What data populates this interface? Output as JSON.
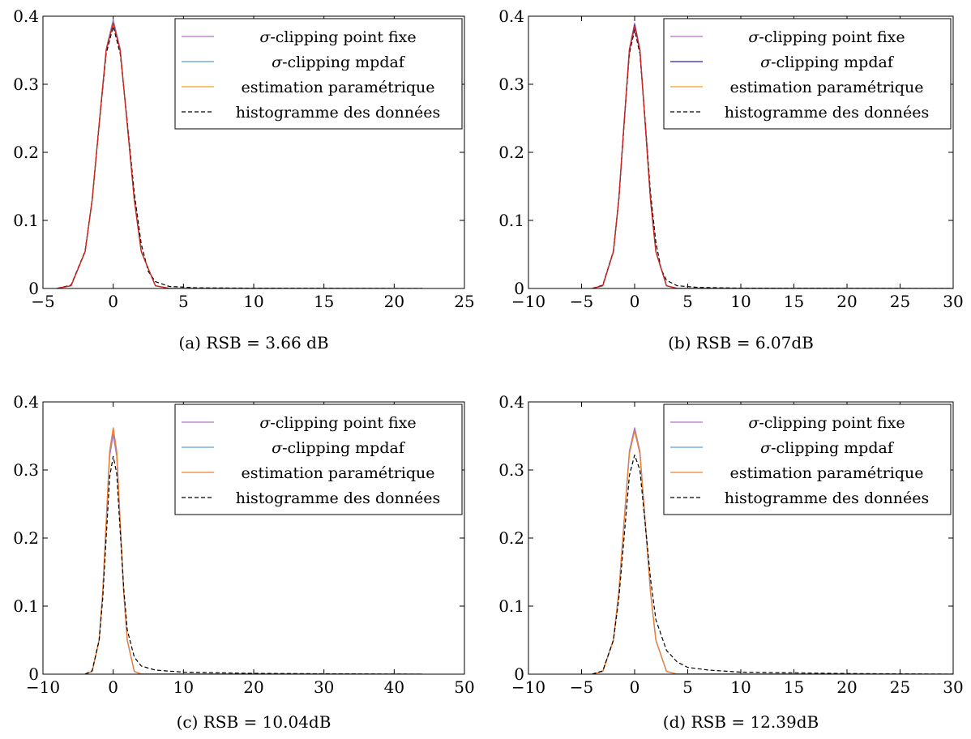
{
  "legend": [
    {
      "pre": "σ",
      "label": "-clipping point fixe",
      "color": "#b072c4",
      "dash": false
    },
    {
      "pre": "σ",
      "label": "-clipping mpdaf",
      "color": "#5aa0d0",
      "dash": false
    },
    {
      "pre": "",
      "label": "estimation paramétrique",
      "color": "#f0a020",
      "dash": false
    },
    {
      "pre": "",
      "label": "histogramme des données",
      "color": "#000000",
      "dash": true
    }
  ],
  "chart_data": [
    {
      "type": "line",
      "caption": "(a) RSB = 3.66 dB",
      "xlim": [
        -5,
        25
      ],
      "ylim": [
        0,
        0.4
      ],
      "xticks": [
        -5,
        0,
        5,
        10,
        15,
        20,
        25
      ],
      "xtick_labels": [
        "−5",
        "0",
        "5",
        "10",
        "15",
        "20",
        "25"
      ],
      "yticks": [
        0,
        0.1,
        0.2,
        0.3,
        0.4
      ],
      "ytick_labels": [
        "0",
        "0.1",
        "0.2",
        "0.3",
        "0.4"
      ],
      "legend_position": "top-right",
      "series": [
        {
          "name": "σ-clipping point fixe",
          "color": "#b072c4",
          "x": [
            -4,
            -3,
            -2,
            -1.5,
            -1,
            -0.5,
            0,
            0.5,
            1,
            1.5,
            2,
            3,
            4,
            22
          ],
          "y": [
            0.0001,
            0.004,
            0.054,
            0.13,
            0.242,
            0.352,
            0.395,
            0.352,
            0.242,
            0.13,
            0.054,
            0.004,
            0.0001,
            0
          ]
        },
        {
          "name": "σ-clipping mpdaf",
          "color": "#5aa0d0",
          "x": [
            -4,
            -3,
            -2,
            -1.5,
            -1,
            -0.5,
            0,
            0.5,
            1,
            1.5,
            2,
            3,
            4,
            22
          ],
          "y": [
            0.0001,
            0.004,
            0.054,
            0.13,
            0.241,
            0.35,
            0.393,
            0.35,
            0.241,
            0.13,
            0.054,
            0.004,
            0.0001,
            0
          ]
        },
        {
          "name": "estimation paramétrique",
          "color": "#f0a020",
          "x": [
            -4,
            -3,
            -2,
            -1.5,
            -1,
            -0.5,
            0,
            0.5,
            1,
            1.5,
            2,
            3,
            4,
            22
          ],
          "y": [
            0.0001,
            0.004,
            0.054,
            0.13,
            0.241,
            0.35,
            0.39,
            0.35,
            0.241,
            0.13,
            0.054,
            0.004,
            0.0001,
            0
          ]
        },
        {
          "name": "histogramme des données",
          "color": "#000000",
          "dash": true,
          "x": [
            -4,
            -3,
            -2,
            -1.5,
            -1,
            -0.5,
            0,
            0.5,
            1,
            1.5,
            2,
            2.5,
            3,
            4,
            6,
            10,
            22
          ],
          "y": [
            0.0001,
            0.005,
            0.055,
            0.13,
            0.24,
            0.345,
            0.385,
            0.345,
            0.245,
            0.14,
            0.065,
            0.025,
            0.01,
            0.003,
            0.001,
            0.0005,
            0
          ]
        },
        {
          "name": "σ-clipping mpdaf (red)",
          "color": "#cc2222",
          "x": [
            -4,
            -3,
            -2,
            -1.5,
            -1,
            -0.5,
            0,
            0.5,
            1,
            1.5,
            2,
            3,
            4
          ],
          "y": [
            0.0001,
            0.004,
            0.054,
            0.13,
            0.241,
            0.35,
            0.39,
            0.35,
            0.241,
            0.13,
            0.054,
            0.004,
            0.0001
          ]
        }
      ]
    },
    {
      "type": "line",
      "caption": "(b) RSB = 6.07dB",
      "xlim": [
        -10,
        30
      ],
      "ylim": [
        0,
        0.4
      ],
      "xticks": [
        -10,
        -5,
        0,
        5,
        10,
        15,
        20,
        25,
        30
      ],
      "xtick_labels": [
        "−10",
        "−5",
        "0",
        "5",
        "10",
        "15",
        "20",
        "25",
        "30"
      ],
      "yticks": [
        0,
        0.1,
        0.2,
        0.3,
        0.4
      ],
      "ytick_labels": [
        "0",
        "0.1",
        "0.2",
        "0.3",
        "0.4"
      ],
      "legend_position": "top-right",
      "series": [
        {
          "name": "σ-clipping point fixe",
          "color": "#b072c4",
          "x": [
            -4,
            -3,
            -2,
            -1.5,
            -1,
            -0.5,
            0,
            0.5,
            1,
            1.5,
            2,
            3,
            4,
            30
          ],
          "y": [
            0.0001,
            0.004,
            0.054,
            0.13,
            0.242,
            0.352,
            0.39,
            0.352,
            0.242,
            0.13,
            0.054,
            0.004,
            0.0001,
            0
          ]
        },
        {
          "name": "σ-clipping mpdaf",
          "color": "#2020c0",
          "x": [
            -4,
            -3,
            -2,
            -1.5,
            -1,
            -0.5,
            0,
            0.5,
            1,
            1.5,
            2,
            3,
            4,
            30
          ],
          "y": [
            0.0001,
            0.004,
            0.054,
            0.13,
            0.241,
            0.35,
            0.387,
            0.35,
            0.241,
            0.13,
            0.054,
            0.004,
            0.0001,
            0
          ]
        },
        {
          "name": "estimation paramétrique",
          "color": "#f0a020",
          "x": [
            -4,
            -3,
            -2,
            -1.5,
            -1,
            -0.5,
            0,
            0.5,
            1,
            1.5,
            2,
            3,
            4,
            30
          ],
          "y": [
            0.0001,
            0.004,
            0.054,
            0.13,
            0.241,
            0.35,
            0.385,
            0.35,
            0.241,
            0.13,
            0.054,
            0.004,
            0.0001,
            0
          ]
        },
        {
          "name": "histogramme des données",
          "color": "#000000",
          "dash": true,
          "x": [
            -4,
            -3,
            -2,
            -1.5,
            -1,
            -0.5,
            0,
            0.5,
            1,
            1.5,
            2,
            2.5,
            3,
            4,
            6,
            10,
            30
          ],
          "y": [
            0.0001,
            0.005,
            0.055,
            0.13,
            0.24,
            0.345,
            0.38,
            0.345,
            0.245,
            0.14,
            0.068,
            0.028,
            0.012,
            0.004,
            0.0015,
            0.0005,
            0
          ]
        },
        {
          "name": "σ-clipping mpdaf (red)",
          "color": "#cc2222",
          "x": [
            -4,
            -3,
            -2,
            -1.5,
            -1,
            -0.5,
            0,
            0.5,
            1,
            1.5,
            2,
            3,
            4
          ],
          "y": [
            0.0001,
            0.004,
            0.054,
            0.13,
            0.241,
            0.35,
            0.385,
            0.35,
            0.241,
            0.13,
            0.054,
            0.004,
            0.0001
          ]
        }
      ]
    },
    {
      "type": "line",
      "caption": "(c) RSB = 10.04dB",
      "xlim": [
        -10,
        50
      ],
      "ylim": [
        0,
        0.4
      ],
      "xticks": [
        -10,
        0,
        10,
        20,
        30,
        40,
        50
      ],
      "xtick_labels": [
        "−10",
        "0",
        "10",
        "20",
        "30",
        "40",
        "50"
      ],
      "yticks": [
        0,
        0.1,
        0.2,
        0.3,
        0.4
      ],
      "ytick_labels": [
        "0",
        "0.1",
        "0.2",
        "0.3",
        "0.4"
      ],
      "legend_position": "top-right",
      "series": [
        {
          "name": "σ-clipping point fixe",
          "color": "#b072c4",
          "x": [
            -4,
            -3,
            -2,
            -1.5,
            -1,
            -0.5,
            0,
            0.5,
            1,
            1.5,
            2,
            3,
            4,
            44
          ],
          "y": [
            0.0001,
            0.004,
            0.05,
            0.118,
            0.22,
            0.32,
            0.352,
            0.32,
            0.22,
            0.118,
            0.05,
            0.004,
            0.0001,
            0
          ]
        },
        {
          "name": "σ-clipping mpdaf",
          "color": "#5aa0d0",
          "x": [
            -4,
            -3,
            -2,
            -1.5,
            -1,
            -0.5,
            0,
            0.5,
            1,
            1.5,
            2,
            3,
            4,
            44
          ],
          "y": [
            0.0001,
            0.004,
            0.05,
            0.12,
            0.224,
            0.326,
            0.36,
            0.326,
            0.224,
            0.12,
            0.05,
            0.004,
            0.0001,
            0
          ]
        },
        {
          "name": "estimation paramétrique",
          "color": "#f08030",
          "x": [
            -4,
            -3,
            -2,
            -1.5,
            -1,
            -0.5,
            0,
            0.5,
            1,
            1.5,
            2,
            3,
            4,
            44
          ],
          "y": [
            0.0001,
            0.004,
            0.05,
            0.12,
            0.225,
            0.328,
            0.362,
            0.328,
            0.225,
            0.12,
            0.05,
            0.004,
            0.0001,
            0
          ]
        },
        {
          "name": "histogramme des données",
          "color": "#000000",
          "dash": true,
          "x": [
            -4,
            -3,
            -2,
            -1.5,
            -1,
            -0.5,
            0,
            0.5,
            1,
            1.5,
            2,
            3,
            4,
            6,
            10,
            20,
            30,
            44
          ],
          "y": [
            0.0001,
            0.005,
            0.05,
            0.11,
            0.2,
            0.29,
            0.32,
            0.295,
            0.21,
            0.125,
            0.065,
            0.025,
            0.012,
            0.006,
            0.003,
            0.0012,
            0.0006,
            0
          ]
        }
      ]
    },
    {
      "type": "line",
      "caption": "(d) RSB = 12.39dB",
      "xlim": [
        -10,
        30
      ],
      "ylim": [
        0,
        0.4
      ],
      "xticks": [
        -10,
        -5,
        0,
        5,
        10,
        15,
        20,
        25,
        30
      ],
      "xtick_labels": [
        "−10",
        "−5",
        "0",
        "5",
        "10",
        "15",
        "20",
        "25",
        "30"
      ],
      "yticks": [
        0,
        0.1,
        0.2,
        0.3,
        0.4
      ],
      "ytick_labels": [
        "0",
        "0.1",
        "0.2",
        "0.3",
        "0.4"
      ],
      "legend_position": "top-right",
      "series": [
        {
          "name": "σ-clipping point fixe",
          "color": "#b072c4",
          "x": [
            -4,
            -3,
            -2,
            -1.5,
            -1,
            -0.5,
            0,
            0.5,
            1,
            1.5,
            2,
            3,
            4,
            30
          ],
          "y": [
            0.0001,
            0.004,
            0.05,
            0.12,
            0.224,
            0.328,
            0.362,
            0.328,
            0.224,
            0.12,
            0.05,
            0.004,
            0.0001,
            0
          ]
        },
        {
          "name": "σ-clipping mpdaf",
          "color": "#5aa0d0",
          "x": [
            -4,
            -3,
            -2,
            -1.5,
            -1,
            -0.5,
            0,
            0.5,
            1,
            1.5,
            2,
            3,
            4,
            30
          ],
          "y": [
            0.0001,
            0.004,
            0.05,
            0.12,
            0.222,
            0.325,
            0.358,
            0.325,
            0.222,
            0.12,
            0.05,
            0.004,
            0.0001,
            0
          ]
        },
        {
          "name": "estimation paramétrique",
          "color": "#f08030",
          "x": [
            -4,
            -3,
            -2,
            -1.5,
            -1,
            -0.5,
            0,
            0.5,
            1,
            1.5,
            2,
            3,
            4,
            30
          ],
          "y": [
            0.0001,
            0.004,
            0.05,
            0.12,
            0.222,
            0.324,
            0.357,
            0.324,
            0.222,
            0.12,
            0.05,
            0.004,
            0.0001,
            0
          ]
        },
        {
          "name": "histogramme des données",
          "color": "#000000",
          "dash": true,
          "x": [
            -4,
            -3,
            -2,
            -1.5,
            -1,
            -0.5,
            0,
            0.5,
            1,
            1.5,
            2,
            3,
            4,
            5,
            7,
            10,
            20,
            30
          ],
          "y": [
            0.0001,
            0.005,
            0.05,
            0.11,
            0.2,
            0.292,
            0.322,
            0.3,
            0.22,
            0.14,
            0.08,
            0.035,
            0.018,
            0.01,
            0.006,
            0.003,
            0.001,
            0
          ]
        }
      ]
    }
  ]
}
